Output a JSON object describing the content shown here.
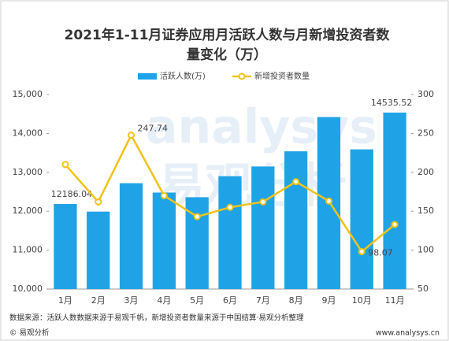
{
  "chart_data": {
    "type": "bar",
    "title": [
      "2021年1-11月证券应用月活跃人数与月新增投资者数",
      "量变化（万）"
    ],
    "categories": [
      "1月",
      "2月",
      "3月",
      "4月",
      "5月",
      "6月",
      "7月",
      "8月",
      "9月",
      "10月",
      "11月"
    ],
    "series": [
      {
        "name": "活跃人数(万)",
        "type": "bar",
        "color": "#1fa3e6",
        "values": [
          12186.04,
          11990,
          12720,
          12480,
          12360,
          12900,
          13150,
          13540,
          14420,
          13590,
          14535.52
        ],
        "value_labels": [
          "12186.04",
          null,
          null,
          null,
          null,
          null,
          null,
          null,
          null,
          null,
          "14535.52"
        ]
      },
      {
        "name": "新增投资者数量",
        "type": "line",
        "axis": "y2",
        "color": "#f2c318",
        "values": [
          210,
          162,
          247.74,
          170,
          143,
          155,
          162,
          188,
          163,
          98.07,
          133
        ],
        "value_labels": [
          null,
          null,
          "247.74",
          null,
          null,
          null,
          null,
          null,
          null,
          "98.07",
          null
        ]
      }
    ],
    "ylim": [
      10000,
      15000
    ],
    "yticks": [
      {
        "value": 10000,
        "label": "10,000"
      },
      {
        "value": 11000,
        "label": "11,000"
      },
      {
        "value": 12000,
        "label": "12,000"
      },
      {
        "value": 13000,
        "label": "13,000"
      },
      {
        "value": 14000,
        "label": "14,000"
      },
      {
        "value": 15000,
        "label": "15,000"
      }
    ],
    "y2lim": [
      50,
      300
    ],
    "y2ticks": [
      50,
      100,
      150,
      200,
      250,
      300
    ],
    "watermark": [
      "analysys",
      "易观分析"
    ],
    "source": "数据来源：活跃人数数据来源于易观千帆，新增投资者数量来源于中国结算·易观分析整理",
    "brand": "© 易观分析",
    "website": "www.analysys.cn"
  }
}
